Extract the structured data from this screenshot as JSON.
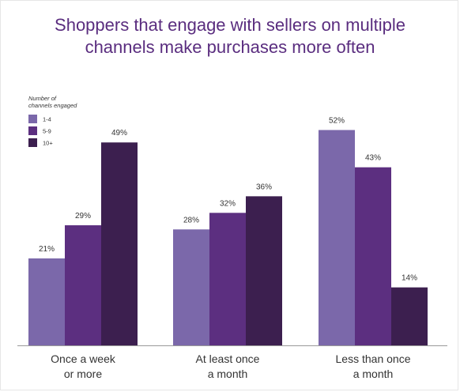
{
  "title_lines": [
    "Shoppers that engage with sellers on multiple",
    "channels make purchases more often"
  ],
  "legend": {
    "title_lines": [
      "Number of",
      "channels engaged"
    ],
    "position": "top-left"
  },
  "colors": {
    "series": [
      "#7b68aa",
      "#5c2f80",
      "#3c1f4f"
    ],
    "title": "#5a2d7f",
    "text": "#333333",
    "axis": "#9a9a9a"
  },
  "chart_data": {
    "type": "bar",
    "title": "Shoppers that engage with sellers on multiple channels make purchases more often",
    "categories": [
      [
        "Once a week",
        "or more"
      ],
      [
        "At least once",
        "a month"
      ],
      [
        "Less than once",
        "a month"
      ]
    ],
    "series": [
      {
        "name": "1-4",
        "values": [
          21,
          28,
          52
        ],
        "labels": [
          "21%",
          "28%",
          "52%"
        ]
      },
      {
        "name": "5-9",
        "values": [
          29,
          32,
          43
        ],
        "labels": [
          "29%",
          "32%",
          "43%"
        ]
      },
      {
        "name": "10+",
        "values": [
          49,
          36,
          14
        ],
        "labels": [
          "49%",
          "36%",
          "14%"
        ]
      }
    ],
    "ylim": [
      0,
      60
    ],
    "grid": false,
    "legend_title": "Number of channels engaged",
    "legend_position": "top-left"
  }
}
